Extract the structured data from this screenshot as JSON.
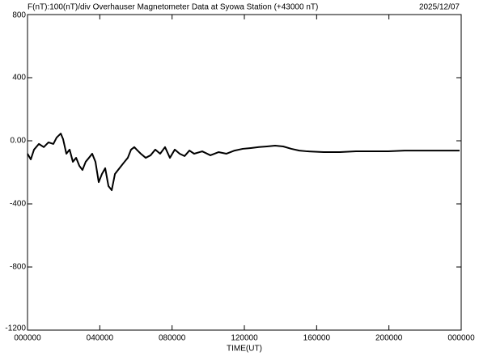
{
  "chart_data": {
    "type": "line",
    "title": "F(nT):100(nT)/div  Overhauser Magnetometer Data at Syowa Station (+43000 nT)",
    "date": "2025/12/07",
    "x_label": "TIME(UT)",
    "x": [
      0,
      0.18,
      0.36,
      0.63,
      0.9,
      1.16,
      1.43,
      1.61,
      1.84,
      1.97,
      2.15,
      2.33,
      2.51,
      2.69,
      2.87,
      3.04,
      3.22,
      3.4,
      3.58,
      3.76,
      3.94,
      4.12,
      4.3,
      4.48,
      4.66,
      4.84,
      5.01,
      5.19,
      5.37,
      5.55,
      5.73,
      5.91,
      6.09,
      6.27,
      6.54,
      6.81,
      7.07,
      7.34,
      7.61,
      7.88,
      8.15,
      8.42,
      8.69,
      8.96,
      9.22,
      9.67,
      10.12,
      10.57,
      11.01,
      11.46,
      11.91,
      12.36,
      12.81,
      13.25,
      13.7,
      14.15,
      14.6,
      15.04,
      15.49,
      16.39,
      17.28,
      18.18,
      19.07,
      19.97,
      20.87,
      21.76,
      22.66,
      23.55,
      23.91
    ],
    "series": [
      {
        "color": "#000000",
        "values": [
          -82,
          -118,
          -56,
          -20,
          -40,
          -10,
          -20,
          20,
          46,
          10,
          -82,
          -56,
          -133,
          -108,
          -159,
          -185,
          -133,
          -108,
          -82,
          -133,
          -262,
          -210,
          -174,
          -287,
          -313,
          -210,
          -185,
          -159,
          -133,
          -108,
          -56,
          -40,
          -62,
          -82,
          -108,
          -92,
          -56,
          -82,
          -40,
          -108,
          -56,
          -82,
          -97,
          -62,
          -82,
          -67,
          -92,
          -72,
          -82,
          -62,
          -51,
          -46,
          -40,
          -36,
          -31,
          -36,
          -51,
          -62,
          -67,
          -72,
          -72,
          -67,
          -67,
          -67,
          -62,
          -62,
          -62,
          -62,
          -62
        ]
      }
    ],
    "xlim": [
      0,
      24
    ],
    "xticks": [
      {
        "value": 0,
        "label": "000000"
      },
      {
        "value": 4,
        "label": "040000"
      },
      {
        "value": 8,
        "label": "080000"
      },
      {
        "value": 12,
        "label": "120000"
      },
      {
        "value": 16,
        "label": "160000"
      },
      {
        "value": 20,
        "label": "200000"
      },
      {
        "value": 24,
        "label": "000000"
      }
    ],
    "ylim": [
      -1200,
      800
    ],
    "yticks": [
      -1200,
      -800,
      -400,
      {
        "value": 0,
        "label": "0.00"
      },
      400,
      800
    ]
  }
}
